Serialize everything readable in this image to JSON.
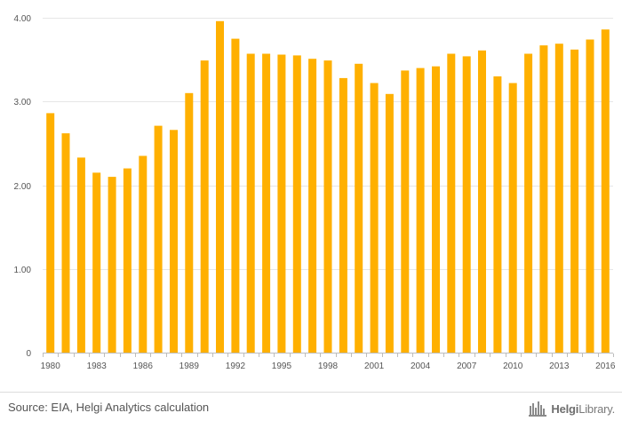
{
  "chart_data": {
    "type": "bar",
    "categories": [
      "1980",
      "1981",
      "1982",
      "1983",
      "1984",
      "1985",
      "1986",
      "1987",
      "1988",
      "1989",
      "1990",
      "1991",
      "1992",
      "1993",
      "1994",
      "1995",
      "1996",
      "1997",
      "1998",
      "1999",
      "2000",
      "2001",
      "2002",
      "2003",
      "2004",
      "2005",
      "2006",
      "2007",
      "2008",
      "2009",
      "2010",
      "2011",
      "2012",
      "2013",
      "2014",
      "2015",
      "2016"
    ],
    "x_tick_labels": [
      "1980",
      "1983",
      "1986",
      "1989",
      "1992",
      "1995",
      "1998",
      "2001",
      "2004",
      "2007",
      "2010",
      "2013",
      "2016"
    ],
    "values": [
      2.86,
      2.62,
      2.33,
      2.15,
      2.1,
      2.2,
      2.35,
      2.71,
      2.66,
      3.1,
      3.49,
      3.96,
      3.75,
      3.57,
      3.57,
      3.56,
      3.55,
      3.51,
      3.49,
      3.28,
      3.45,
      3.22,
      3.09,
      3.37,
      3.4,
      3.42,
      3.57,
      3.54,
      3.61,
      3.3,
      3.22,
      3.57,
      3.67,
      3.69,
      3.62,
      3.74,
      3.86
    ],
    "y_tick_labels": [
      "0",
      "1.00",
      "2.00",
      "3.00",
      "4.00"
    ],
    "y_ticks": [
      0,
      1,
      2,
      3,
      4
    ],
    "ylim": [
      0,
      4
    ],
    "bar_color": "#FFB000",
    "grid": true,
    "title": "",
    "xlabel": "",
    "ylabel": ""
  },
  "footer": {
    "source": "Source: EIA, Helgi Analytics calculation",
    "brand_bold": "Helgi",
    "brand_rest": "Library."
  }
}
